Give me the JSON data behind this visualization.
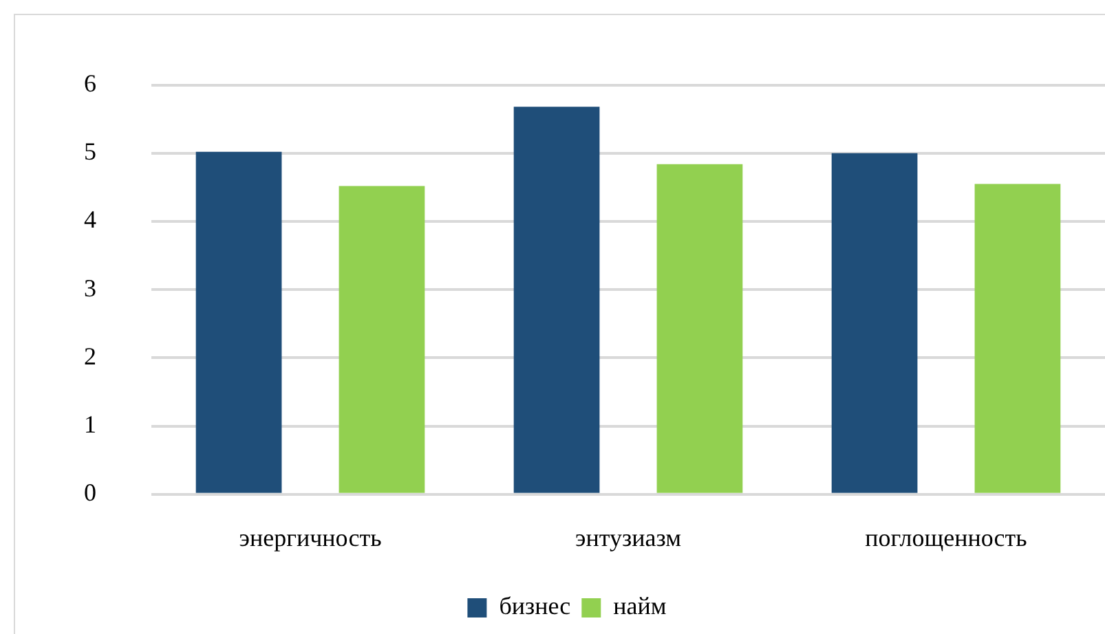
{
  "chart_data": {
    "type": "bar",
    "categories": [
      "энергичность",
      "энтузиазм",
      "поглощенность"
    ],
    "series": [
      {
        "name": "бизнес",
        "color": "#1f4e79",
        "values": [
          5.02,
          5.68,
          5.0
        ]
      },
      {
        "name": "найм",
        "color": "#92d050",
        "values": [
          4.52,
          4.84,
          4.55
        ]
      }
    ],
    "ylim": [
      0,
      6
    ],
    "yticks": [
      0,
      1,
      2,
      3,
      4,
      5,
      6
    ],
    "grid": "y",
    "legend": "bottom"
  }
}
